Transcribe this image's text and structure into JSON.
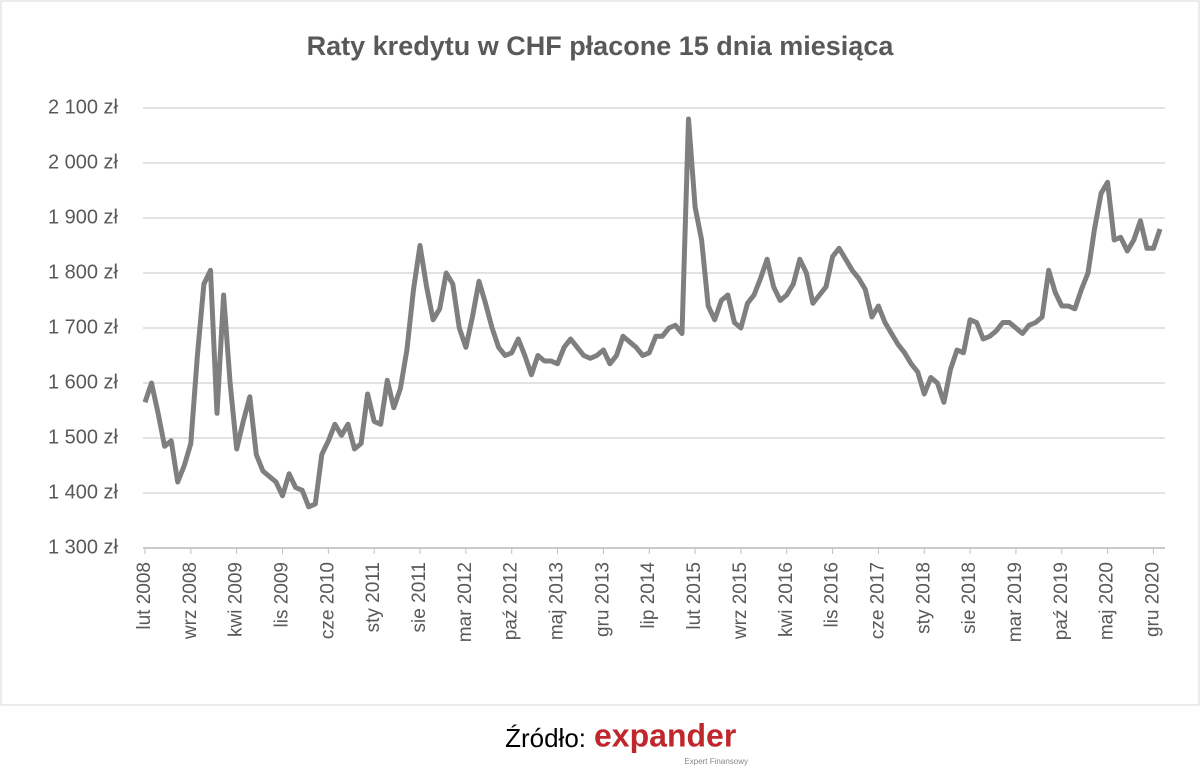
{
  "chart_data": {
    "type": "line",
    "title": "Raty kredytu w CHF płacone 15 dnia miesiąca",
    "categories": [
      "lut 2008",
      null,
      null,
      null,
      null,
      null,
      null,
      "wrz 2008",
      null,
      null,
      null,
      null,
      null,
      null,
      "kwi 2009",
      null,
      null,
      null,
      null,
      null,
      null,
      "lis 2009",
      null,
      null,
      null,
      null,
      null,
      null,
      "cze 2010",
      null,
      null,
      null,
      null,
      null,
      null,
      "sty 2011",
      null,
      null,
      null,
      null,
      null,
      null,
      "sie 2011",
      null,
      null,
      null,
      null,
      null,
      null,
      "mar 2012",
      null,
      null,
      null,
      null,
      null,
      null,
      "paź 2012",
      null,
      null,
      null,
      null,
      null,
      null,
      "maj 2013",
      null,
      null,
      null,
      null,
      null,
      null,
      "gru 2013",
      null,
      null,
      null,
      null,
      null,
      null,
      "lip 2014",
      null,
      null,
      null,
      null,
      null,
      null,
      "lut 2015",
      null,
      null,
      null,
      null,
      null,
      null,
      "wrz 2015",
      null,
      null,
      null,
      null,
      null,
      null,
      "kwi 2016",
      null,
      null,
      null,
      null,
      null,
      null,
      "lis 2016",
      null,
      null,
      null,
      null,
      null,
      null,
      "cze 2017",
      null,
      null,
      null,
      null,
      null,
      null,
      "sty 2018",
      null,
      null,
      null,
      null,
      null,
      null,
      "sie 2018",
      null,
      null,
      null,
      null,
      null,
      null,
      "mar 2019",
      null,
      null,
      null,
      null,
      null,
      null,
      "paź 2019",
      null,
      null,
      null,
      null,
      null,
      null,
      "maj 2020",
      null,
      null,
      null,
      null,
      null,
      null,
      "gru 2020",
      null
    ],
    "series": [
      {
        "color": "#7f7f7f",
        "values": [
          1565,
          1600,
          1545,
          1485,
          1495,
          1420,
          1450,
          1490,
          1650,
          1780,
          1805,
          1545,
          1760,
          1600,
          1480,
          1530,
          1575,
          1470,
          1440,
          1430,
          1420,
          1395,
          1435,
          1410,
          1405,
          1375,
          1380,
          1470,
          1495,
          1525,
          1505,
          1525,
          1480,
          1490,
          1580,
          1530,
          1525,
          1605,
          1555,
          1590,
          1660,
          1770,
          1850,
          1775,
          1715,
          1735,
          1800,
          1780,
          1700,
          1665,
          1720,
          1785,
          1745,
          1700,
          1665,
          1650,
          1655,
          1680,
          1650,
          1615,
          1650,
          1640,
          1640,
          1635,
          1665,
          1680,
          1665,
          1650,
          1645,
          1650,
          1660,
          1635,
          1650,
          1685,
          1675,
          1665,
          1650,
          1655,
          1685,
          1685,
          1700,
          1705,
          1690,
          2080,
          1920,
          1860,
          1740,
          1715,
          1750,
          1760,
          1710,
          1700,
          1745,
          1760,
          1790,
          1825,
          1775,
          1750,
          1760,
          1780,
          1825,
          1800,
          1745,
          1760,
          1775,
          1830,
          1845,
          1825,
          1805,
          1790,
          1770,
          1720,
          1740,
          1710,
          1690,
          1670,
          1655,
          1635,
          1620,
          1580,
          1610,
          1600,
          1565,
          1625,
          1660,
          1655,
          1715,
          1710,
          1680,
          1685,
          1695,
          1710,
          1710,
          1700,
          1690,
          1705,
          1710,
          1720,
          1805,
          1765,
          1740,
          1740,
          1735,
          1770,
          1800,
          1880,
          1945,
          1965,
          1860,
          1865,
          1840,
          1860,
          1895,
          1845,
          1845,
          1880
        ]
      }
    ],
    "ylim": [
      1300,
      2100
    ],
    "yticks": [
      {
        "value": 1300,
        "label": "1 300 zł"
      },
      {
        "value": 1400,
        "label": "1 400 zł"
      },
      {
        "value": 1500,
        "label": "1 500 zł"
      },
      {
        "value": 1600,
        "label": "1 600 zł"
      },
      {
        "value": 1700,
        "label": "1 700 zł"
      },
      {
        "value": 1800,
        "label": "1 800 zł"
      },
      {
        "value": 1900,
        "label": "1 900 zł"
      },
      {
        "value": 2000,
        "label": "2 000 zł"
      },
      {
        "value": 2100,
        "label": "2 100 zł"
      }
    ],
    "grid": true
  },
  "source": {
    "label": "Źródło:",
    "logo": "expander",
    "tagline": "Expert Finansowy"
  }
}
